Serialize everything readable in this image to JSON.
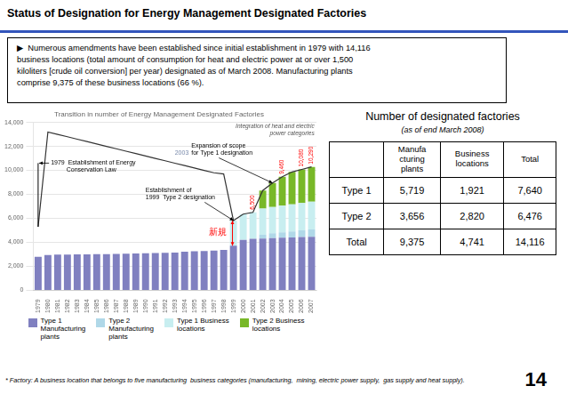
{
  "title": "Status of Designation for Energy Management Designated Factories",
  "bullet_text": "▶  Numerous amendments have been established since initial establishment in 1979 with 14,116\nbusiness locations (total amount of consumption for heat and electric power at or over 1,500\nkiloliters [crude oil conversion] per year) designated as of March 2008. Manufacturing plants\ncomprise 9,375 of these business locations (66 %).",
  "chart_data": {
    "type": "bar",
    "title": "Transition in number of Energy Management Designated Factories",
    "categories": [
      1979,
      1980,
      1981,
      1982,
      1983,
      1984,
      1985,
      1986,
      1987,
      1988,
      1989,
      1990,
      1991,
      1992,
      1993,
      1994,
      1995,
      1996,
      1997,
      1998,
      1999,
      2000,
      2001,
      2002,
      2003,
      2004,
      2005,
      2006,
      2007
    ],
    "stacked": true,
    "grid": true,
    "legend": "bottom",
    "series": [
      {
        "name": "Type 1\nManufacturing\nplants",
        "color": "#8080c0",
        "values": [
          2800,
          2950,
          2970,
          2980,
          2990,
          3000,
          3010,
          3020,
          3030,
          3050,
          3070,
          3090,
          3110,
          3130,
          3150,
          3220,
          3260,
          3280,
          3320,
          3360,
          3720,
          4200,
          4300,
          4320,
          4350,
          4380,
          4410,
          4440,
          4470
        ]
      },
      {
        "name": "Type 2\nManufacturing\nplants",
        "color": "#b0d8e8",
        "values": [
          0,
          0,
          0,
          0,
          0,
          0,
          0,
          0,
          0,
          0,
          0,
          0,
          0,
          0,
          0,
          0,
          0,
          0,
          0,
          0,
          0,
          0,
          0,
          300,
          400,
          450,
          500,
          550,
          600
        ]
      },
      {
        "name": "Type 1 Business\nlocations",
        "color": "#c8eef0",
        "values": [
          0,
          0,
          0,
          0,
          0,
          0,
          0,
          0,
          0,
          0,
          0,
          0,
          0,
          0,
          0,
          0,
          0,
          0,
          0,
          0,
          2100,
          2150,
          2200,
          2200,
          2200,
          2230,
          2260,
          2290,
          2320
        ]
      },
      {
        "name": "Type 2 Business\nlocations",
        "color": "#78b828",
        "values": [
          0,
          0,
          0,
          0,
          0,
          0,
          0,
          0,
          0,
          0,
          0,
          0,
          0,
          0,
          0,
          0,
          0,
          0,
          0,
          0,
          0,
          0,
          0,
          1500,
          2000,
          2400,
          2700,
          2800,
          2900
        ]
      },
      {
        "type": "line",
        "color": "#333333",
        "values": [
          5300,
          13200,
          13000,
          12800,
          12600,
          12400,
          12200,
          12000,
          11800,
          11600,
          11400,
          11200,
          11000,
          10800,
          10600,
          10400,
          10200,
          10000,
          9800,
          9700,
          5820,
          6350,
          6500,
          8320,
          8950,
          9460,
          9870,
          10080,
          10290
        ],
        "value_labels": [
          null,
          null,
          null,
          null,
          null,
          null,
          null,
          null,
          null,
          null,
          null,
          null,
          null,
          null,
          null,
          null,
          null,
          null,
          null,
          null,
          null,
          null,
          "6,500",
          null,
          null,
          "9,460",
          null,
          "10,080",
          "10,290"
        ]
      }
    ],
    "ylim": [
      0,
      14000
    ],
    "yticks": [
      0,
      {
        "value": 2000,
        "label": "2,000"
      },
      {
        "value": 4000,
        "label": "4,000"
      },
      {
        "value": 6000,
        "label": "6,000"
      },
      {
        "value": 8000,
        "label": "8,000"
      },
      {
        "value": 10000,
        "label": "10,000"
      },
      {
        "value": 12000,
        "label": "12,000"
      },
      {
        "value": 14000,
        "label": "14,000"
      }
    ],
    "annotations": [
      {
        "text": "1979  Establishment of Energy\n         Conservation Law",
        "x": 1979
      },
      {
        "text": "Establishment of\n1999  Type 2 designation",
        "x": 1999
      },
      {
        "text": "Expansion of scope\nfor Type 1 designation",
        "x": 2003,
        "tag": "2003"
      },
      {
        "text": "Integration of heat and electric\npower categories"
      },
      {
        "text": "新規",
        "x": 1999,
        "series": "Type 1 Business\nlocations"
      }
    ]
  },
  "table": {
    "title": "Number of designated factories",
    "subtitle": "(as of end March 2008)",
    "header": [
      "",
      "Manufa\ncturing\nplants",
      "Business\nlocations",
      "Total"
    ],
    "rows": [
      [
        "Type 1",
        "5,719",
        "1,921",
        "7,640"
      ],
      [
        "Type 2",
        "3,656",
        "2,820",
        "6,476"
      ],
      [
        "Total",
        "9,375",
        "4,741",
        "14,116"
      ]
    ]
  },
  "footnote": "* Factory: A business location that belongs to five manufacturing  business categories (manufacturing,  mining, electric power supply,  gas supply and heat supply).",
  "page_number": "14"
}
